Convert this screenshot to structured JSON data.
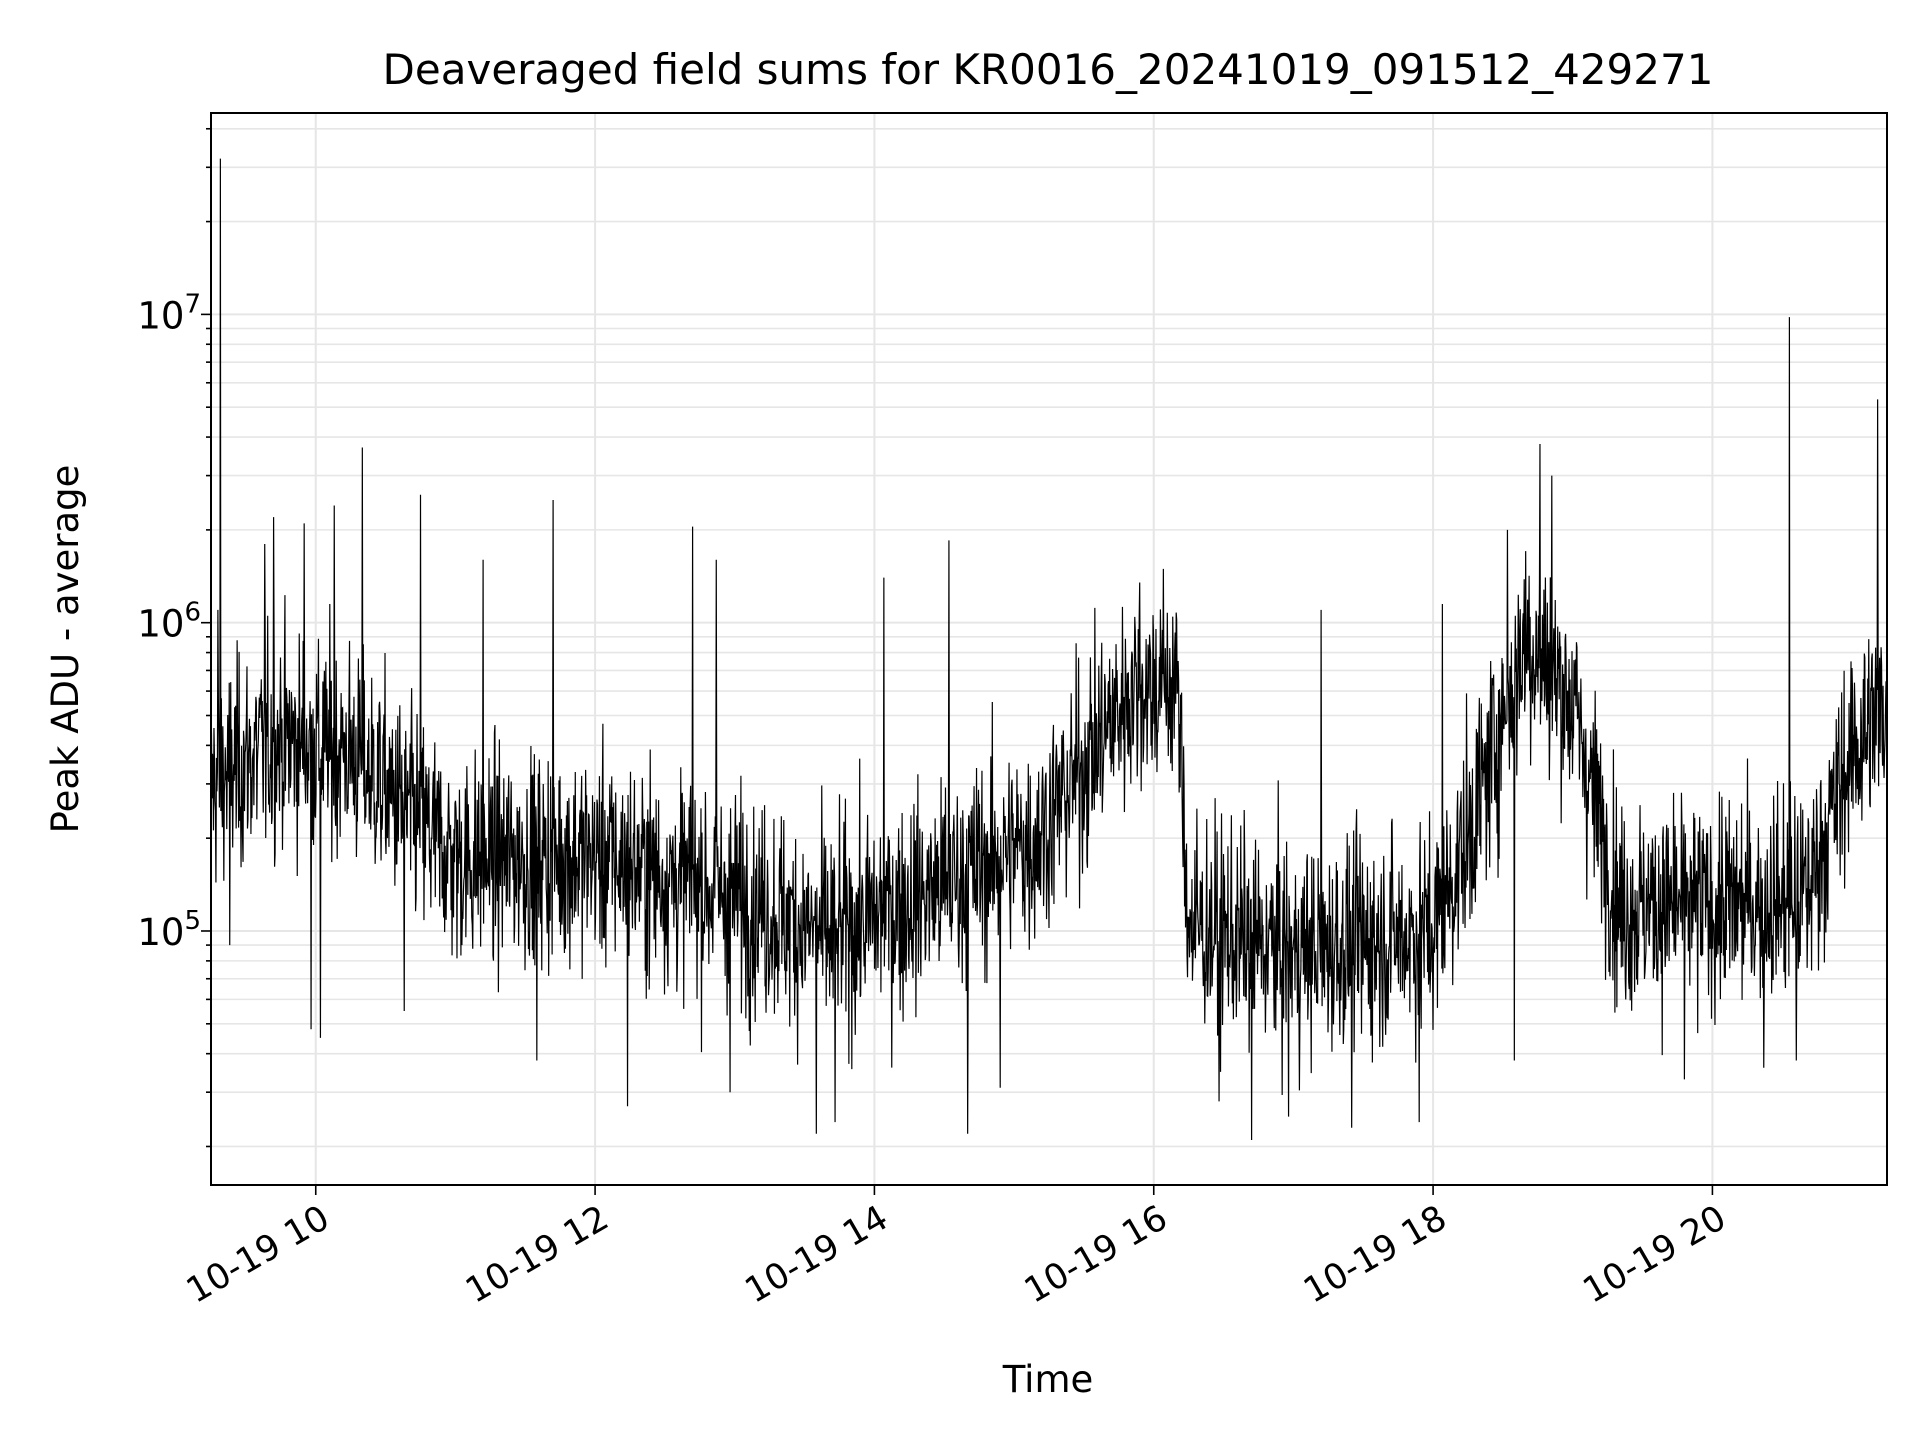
{
  "chart_data": {
    "type": "line",
    "title": "Deaveraged field sums for KR0016_20241019_091512_429271",
    "xlabel": "Time",
    "ylabel": "Peak ADU - average",
    "yscale": "log",
    "ylim": [
      15000,
      45000000
    ],
    "xlim": [
      "2024-10-19 09:15",
      "2024-10-19 21:15"
    ],
    "xticks": [
      {
        "value": "2024-10-19 10:00",
        "label": "10-19 10"
      },
      {
        "value": "2024-10-19 12:00",
        "label": "10-19 12"
      },
      {
        "value": "2024-10-19 14:00",
        "label": "10-19 14"
      },
      {
        "value": "2024-10-19 16:00",
        "label": "10-19 16"
      },
      {
        "value": "2024-10-19 18:00",
        "label": "10-19 18"
      },
      {
        "value": "2024-10-19 20:00",
        "label": "10-19 20"
      }
    ],
    "yticks": [
      {
        "value": 100000,
        "base": "10",
        "exp": "5"
      },
      {
        "value": 1000000,
        "base": "10",
        "exp": "6"
      },
      {
        "value": 10000000,
        "base": "10",
        "exp": "7"
      }
    ],
    "grid": true,
    "line_color": "#000000",
    "grid_color": "#e6e6e6",
    "series": [
      {
        "baseline": [
          [
            "2024-10-19 09:15",
            300000
          ],
          [
            "2024-10-19 09:45",
            420000
          ],
          [
            "2024-10-19 10:15",
            380000
          ],
          [
            "2024-10-19 11:00",
            170000
          ],
          [
            "2024-10-19 12:00",
            175000
          ],
          [
            "2024-10-19 13:00",
            130000
          ],
          [
            "2024-10-19 13:40",
            95000
          ],
          [
            "2024-10-19 14:30",
            140000
          ],
          [
            "2024-10-19 15:10",
            200000
          ],
          [
            "2024-10-19 15:50",
            600000
          ],
          [
            "2024-10-19 16:10",
            650000
          ],
          [
            "2024-10-19 16:15",
            105000
          ],
          [
            "2024-10-19 17:00",
            85000
          ],
          [
            "2024-10-19 18:00",
            100000
          ],
          [
            "2024-10-19 18:15",
            200000
          ],
          [
            "2024-10-19 18:40",
            900000
          ],
          [
            "2024-10-19 19:00",
            550000
          ],
          [
            "2024-10-19 19:20",
            120000
          ],
          [
            "2024-10-19 20:00",
            120000
          ],
          [
            "2024-10-19 20:40",
            130000
          ],
          [
            "2024-10-19 21:00",
            380000
          ],
          [
            "2024-10-19 21:15",
            560000
          ]
        ],
        "spikes": [
          [
            "2024-10-19 09:19",
            32000000
          ],
          [
            "2024-10-19 09:18",
            1100000
          ],
          [
            "2024-10-19 09:38",
            1800000
          ],
          [
            "2024-10-19 09:42",
            2200000
          ],
          [
            "2024-10-19 09:55",
            2100000
          ],
          [
            "2024-10-19 10:08",
            2400000
          ],
          [
            "2024-10-19 10:20",
            3700000
          ],
          [
            "2024-10-19 10:45",
            2600000
          ],
          [
            "2024-10-19 11:12",
            1600000
          ],
          [
            "2024-10-19 11:42",
            2500000
          ],
          [
            "2024-10-19 12:42",
            2050000
          ],
          [
            "2024-10-19 12:52",
            1600000
          ],
          [
            "2024-10-19 14:04",
            1400000
          ],
          [
            "2024-10-19 14:32",
            1850000
          ],
          [
            "2024-10-19 15:54",
            1350000
          ],
          [
            "2024-10-19 17:12",
            1100000
          ],
          [
            "2024-10-19 18:04",
            1150000
          ],
          [
            "2024-10-19 18:32",
            2000000
          ],
          [
            "2024-10-19 18:46",
            3800000
          ],
          [
            "2024-10-19 18:51",
            3000000
          ],
          [
            "2024-10-19 20:33",
            9800000
          ],
          [
            "2024-10-19 21:11",
            5300000
          ]
        ],
        "dips": [
          [
            "2024-10-19 09:23",
            90000
          ],
          [
            "2024-10-19 09:58",
            48000
          ],
          [
            "2024-10-19 10:02",
            45000
          ],
          [
            "2024-10-19 10:38",
            55000
          ],
          [
            "2024-10-19 11:35",
            38000
          ],
          [
            "2024-10-19 12:14",
            27000
          ],
          [
            "2024-10-19 12:58",
            30000
          ],
          [
            "2024-10-19 13:35",
            22000
          ],
          [
            "2024-10-19 13:43",
            24000
          ],
          [
            "2024-10-19 14:40",
            22000
          ],
          [
            "2024-10-19 14:54",
            31000
          ],
          [
            "2024-10-19 16:28",
            28000
          ],
          [
            "2024-10-19 16:42",
            21000
          ],
          [
            "2024-10-19 16:58",
            25000
          ],
          [
            "2024-10-19 17:25",
            23000
          ],
          [
            "2024-10-19 17:54",
            24000
          ],
          [
            "2024-10-19 18:35",
            38000
          ],
          [
            "2024-10-19 19:48",
            33000
          ],
          [
            "2024-10-19 20:22",
            36000
          ],
          [
            "2024-10-19 20:36",
            38000
          ]
        ]
      }
    ]
  }
}
